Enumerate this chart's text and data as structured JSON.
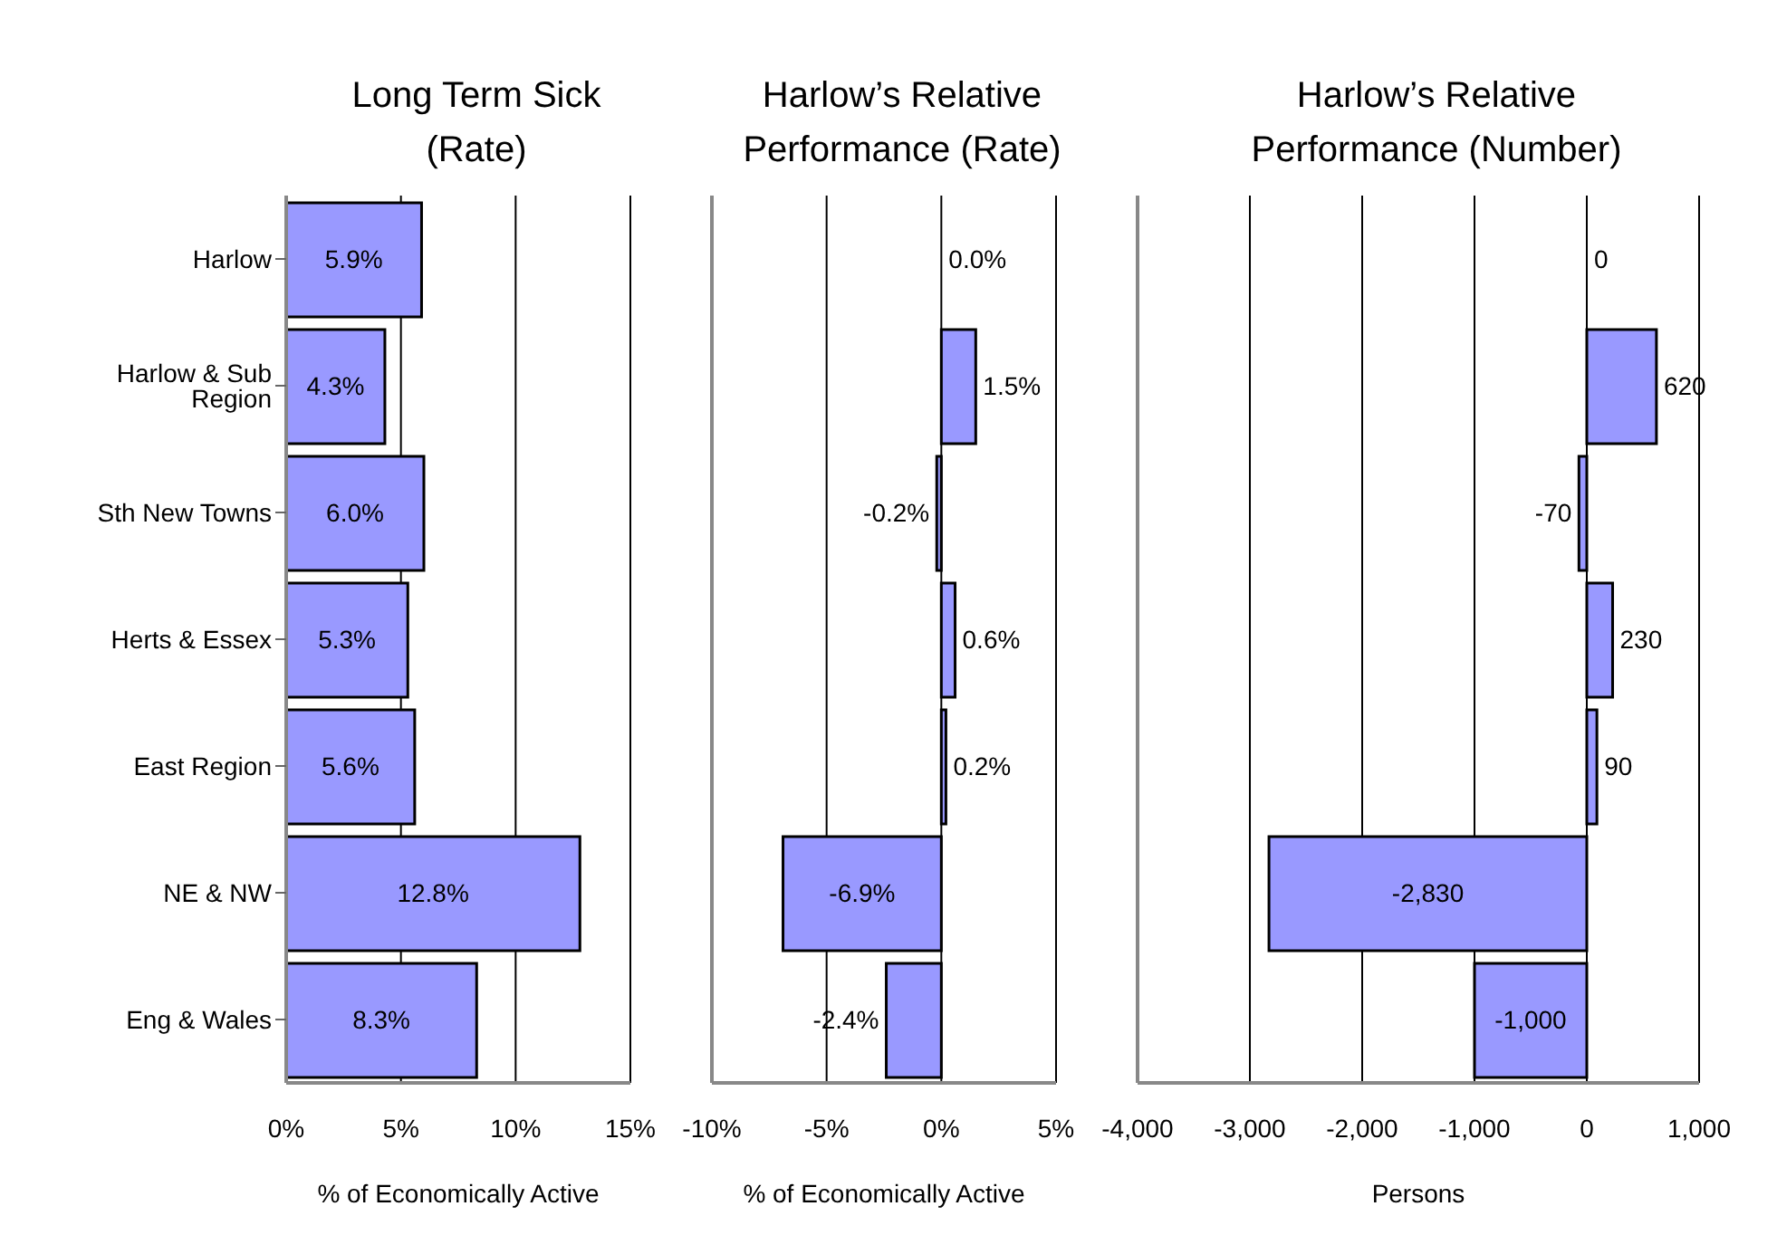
{
  "chart_data": [
    {
      "type": "bar",
      "orientation": "horizontal",
      "title": "Long Term Sick (Rate)",
      "xlabel": "% of Economically Active",
      "categories": [
        "Harlow",
        "Harlow & Sub Region",
        "Sth New Towns",
        "Herts & Essex",
        "East Region",
        "NE & NW",
        "Eng & Wales"
      ],
      "values": [
        5.9,
        4.3,
        6.0,
        5.3,
        5.6,
        12.8,
        8.3
      ],
      "value_labels": [
        "5.9%",
        "4.3%",
        "6.0%",
        "5.3%",
        "5.6%",
        "12.8%",
        "8.3%"
      ],
      "color": "#9999ff",
      "xlim": [
        0,
        15
      ],
      "xticks": [
        {
          "value": 0,
          "label": "0%"
        },
        {
          "value": 5,
          "label": "5%"
        },
        {
          "value": 10,
          "label": "10%"
        },
        {
          "value": 15,
          "label": "15%"
        }
      ],
      "grid": "x"
    },
    {
      "type": "bar",
      "orientation": "horizontal",
      "title": "Harlow’s Relative Performance (Rate)",
      "xlabel": "% of Economically Active",
      "categories": [
        null,
        null,
        null,
        null,
        null,
        null,
        null
      ],
      "values": [
        0.0,
        1.5,
        -0.2,
        0.6,
        0.2,
        -6.9,
        -2.4
      ],
      "value_labels": [
        "0.0%",
        "1.5%",
        "-0.2%",
        "0.6%",
        "0.2%",
        "-6.9%",
        "-2.4%"
      ],
      "color": "#9999ff",
      "xlim": [
        -10,
        5
      ],
      "xticks": [
        {
          "value": -10,
          "label": "-10%"
        },
        {
          "value": -5,
          "label": "-5%"
        },
        {
          "value": 0,
          "label": "0%"
        },
        {
          "value": 5,
          "label": "5%"
        }
      ],
      "grid": "x",
      "tick_labels": "x"
    },
    {
      "type": "bar",
      "orientation": "horizontal",
      "title": "Harlow’s Relative Performance (Number)",
      "xlabel": "Persons",
      "categories": [
        null,
        null,
        null,
        null,
        null,
        null,
        null
      ],
      "values": [
        0,
        620,
        -70,
        230,
        90,
        -2830,
        -1000
      ],
      "value_labels": [
        "0",
        "620",
        "-70",
        "230",
        "90",
        "-2,830",
        "-1,000"
      ],
      "color": "#9999ff",
      "xlim": [
        -4000,
        1000
      ],
      "xticks": [
        {
          "value": -4000,
          "label": "-4,000"
        },
        {
          "value": -3000,
          "label": "-3,000"
        },
        {
          "value": -2000,
          "label": "-2,000"
        },
        {
          "value": -1000,
          "label": "-1,000"
        },
        0,
        {
          "value": 1000,
          "label": "1,000"
        }
      ],
      "grid": "x",
      "tick_labels": "x"
    }
  ]
}
